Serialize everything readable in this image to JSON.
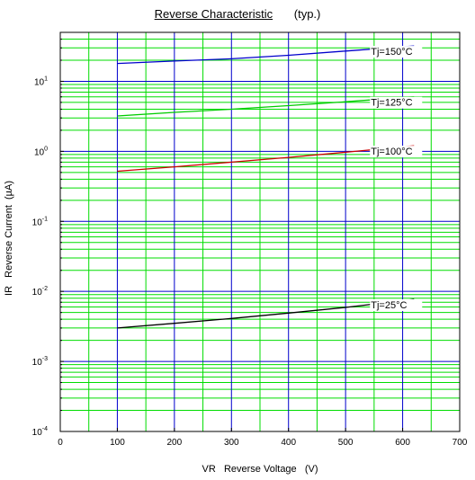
{
  "chart_data": {
    "type": "line",
    "title": "Reverse Characteristic",
    "subtitle": "(typ.)",
    "xlabel": "VR   Reverse Voltage   (V)",
    "ylabel": "IR   Reverse Current  (µA)",
    "xlim": [
      0,
      700
    ],
    "ylim": [
      0.0001,
      50
    ],
    "yscale": "log",
    "grid": true,
    "x_ticks": [
      "0",
      "100",
      "200",
      "300",
      "400",
      "500",
      "600",
      "700"
    ],
    "y_ticks": [
      {
        "base": "10",
        "exp": "-4"
      },
      {
        "base": "10",
        "exp": "-3"
      },
      {
        "base": "10",
        "exp": "-2"
      },
      {
        "base": "10",
        "exp": "-1"
      },
      {
        "base": "10",
        "exp": "0"
      },
      {
        "base": "10",
        "exp": "1"
      }
    ],
    "series": [
      {
        "name": "Tj=150°C",
        "color": "#0000cc",
        "x": [
          100,
          200,
          300,
          400,
          500,
          620
        ],
        "y": [
          18,
          19.5,
          21,
          23.5,
          27,
          32
        ]
      },
      {
        "name": "Tj=125°C",
        "color": "#00cc00",
        "x": [
          100,
          200,
          300,
          400,
          500,
          620
        ],
        "y": [
          3.2,
          3.6,
          4.0,
          4.5,
          5.1,
          6.0
        ]
      },
      {
        "name": "Tj=100°C",
        "color": "#cc0000",
        "x": [
          100,
          200,
          300,
          400,
          500,
          620
        ],
        "y": [
          0.52,
          0.6,
          0.7,
          0.82,
          0.97,
          1.2
        ]
      },
      {
        "name": "Tj=25°C",
        "color": "#000000",
        "x": [
          100,
          200,
          300,
          400,
          500,
          620
        ],
        "y": [
          0.003,
          0.0035,
          0.0041,
          0.0049,
          0.0059,
          0.0077
        ]
      }
    ],
    "colors": {
      "minor_grid": "#00dd00",
      "major_grid": "#0000cc",
      "frame": "#000000"
    }
  }
}
